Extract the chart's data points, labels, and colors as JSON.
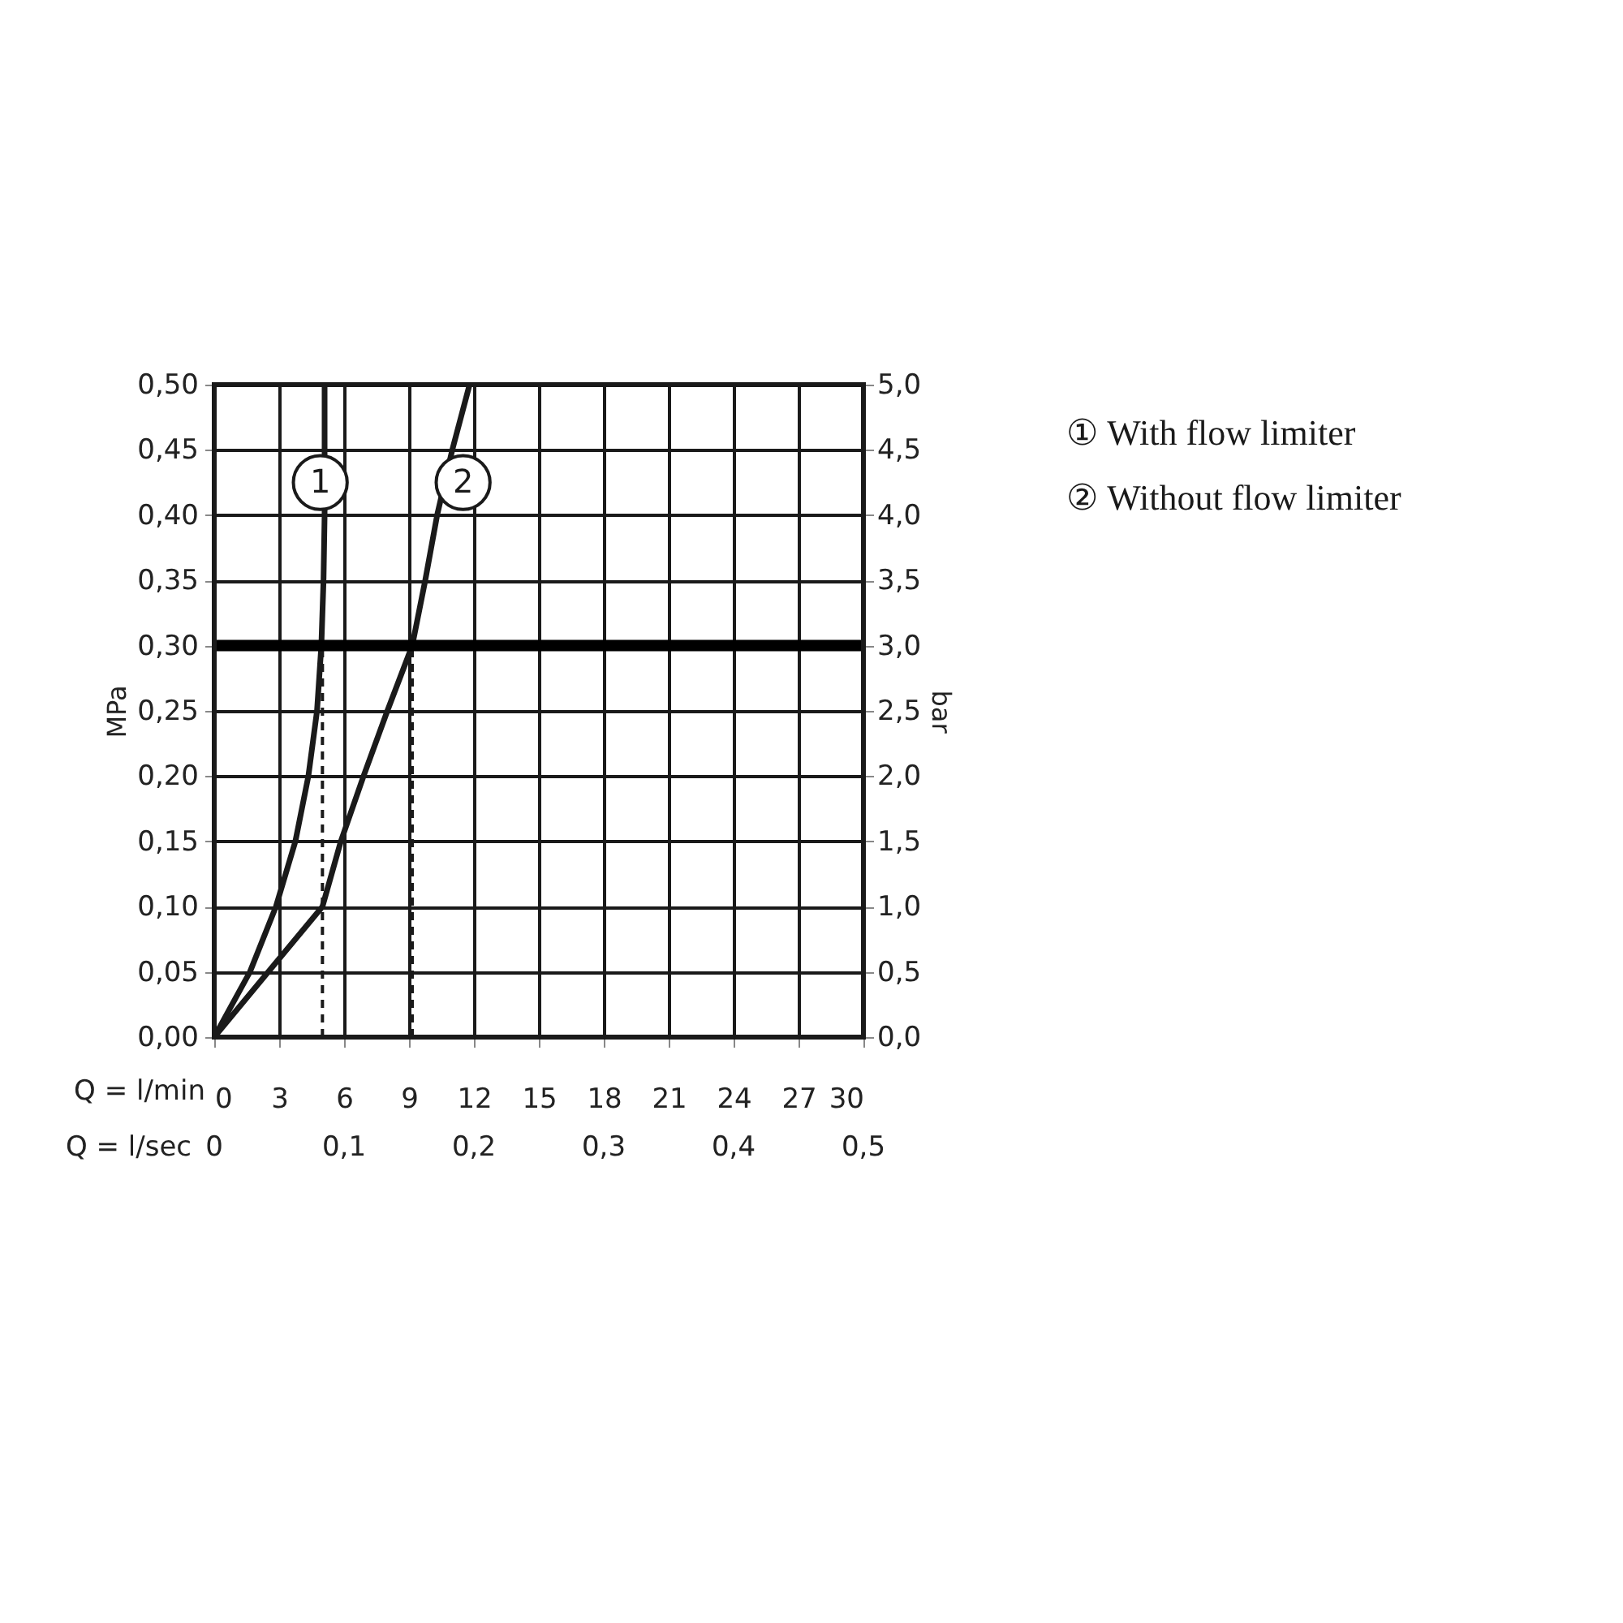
{
  "chart_data": {
    "type": "line",
    "xlabel": "Q = l/min",
    "x2label": "Q = l/sec",
    "ylabel": "MPa",
    "y2label": "bar",
    "xlim": [
      0,
      30
    ],
    "xticks": [
      0,
      3,
      6,
      9,
      12,
      15,
      18,
      21,
      24,
      27,
      30
    ],
    "x2lim": [
      0,
      0.5
    ],
    "x2ticks": [
      {
        "value": 0,
        "label": "0"
      },
      {
        "value": 0.1,
        "label": "0,1"
      },
      {
        "value": 0.2,
        "label": "0,2"
      },
      {
        "value": 0.3,
        "label": "0,3"
      },
      {
        "value": 0.4,
        "label": "0,4"
      },
      {
        "value": 0.5,
        "label": "0,5"
      }
    ],
    "ylim": [
      0,
      0.5
    ],
    "yticks": [
      {
        "value": 0,
        "label": "0,00"
      },
      {
        "value": 0.05,
        "label": "0,05"
      },
      {
        "value": 0.1,
        "label": "0,10"
      },
      {
        "value": 0.15,
        "label": "0,15"
      },
      {
        "value": 0.2,
        "label": "0,20"
      },
      {
        "value": 0.25,
        "label": "0,25"
      },
      {
        "value": 0.3,
        "label": "0,30"
      },
      {
        "value": 0.35,
        "label": "0,35"
      },
      {
        "value": 0.4,
        "label": "0,40"
      },
      {
        "value": 0.45,
        "label": "0,45"
      },
      {
        "value": 0.5,
        "label": "0,50"
      }
    ],
    "y2lim": [
      0,
      5
    ],
    "y2ticks": [
      {
        "value": 0,
        "label": "0,0"
      },
      {
        "value": 0.5,
        "label": "0,5"
      },
      {
        "value": 1,
        "label": "1,0"
      },
      {
        "value": 1.5,
        "label": "1,5"
      },
      {
        "value": 2,
        "label": "2,0"
      },
      {
        "value": 2.5,
        "label": "2,5"
      },
      {
        "value": 3,
        "label": "3,0"
      },
      {
        "value": 3.5,
        "label": "3,5"
      },
      {
        "value": 4,
        "label": "4,0"
      },
      {
        "value": 4.5,
        "label": "4,5"
      },
      {
        "value": 5,
        "label": "5,0"
      }
    ],
    "grid": true,
    "marker": "none",
    "series": [
      {
        "type": "line",
        "color": "#1a1a1a",
        "line_style": "solid",
        "x": [
          0,
          1.65,
          2.85,
          3.75,
          4.35,
          4.75,
          4.95,
          5.05,
          5.1,
          5.1,
          5.1
        ],
        "values": [
          0,
          0.05,
          0.1,
          0.15,
          0.2,
          0.25,
          0.3,
          0.35,
          0.4,
          0.45,
          0.5
        ]
      },
      {
        "type": "line",
        "color": "#1a1a1a",
        "line_style": "solid",
        "x": [
          0,
          2.5,
          5.0,
          5.85,
          6.9,
          8.0,
          9.15,
          9.75,
          10.3,
          11.0,
          11.8
        ],
        "values": [
          0,
          0.05,
          0.1,
          0.15,
          0.2,
          0.25,
          0.3,
          0.35,
          0.4,
          0.45,
          0.5
        ]
      },
      {
        "type": "line",
        "color": "#1a1a1a",
        "line_style": "dashed",
        "x": [
          5.0,
          5.0
        ],
        "values": [
          0,
          0.3
        ]
      },
      {
        "type": "line",
        "color": "#1a1a1a",
        "line_style": "dashed",
        "x": [
          9.15,
          9.15
        ],
        "values": [
          0,
          0.3
        ]
      }
    ],
    "ref_lines": [
      {
        "axis": "y",
        "value": 0.3,
        "color": "#000000",
        "line_style": "solid"
      }
    ],
    "annotations": [
      {
        "text": "1",
        "x": 4.9,
        "y": 0.425
      },
      {
        "text": "2",
        "x": 11.5,
        "y": 0.425
      },
      "① With flow limiter",
      "② Without flow limiter"
    ]
  }
}
